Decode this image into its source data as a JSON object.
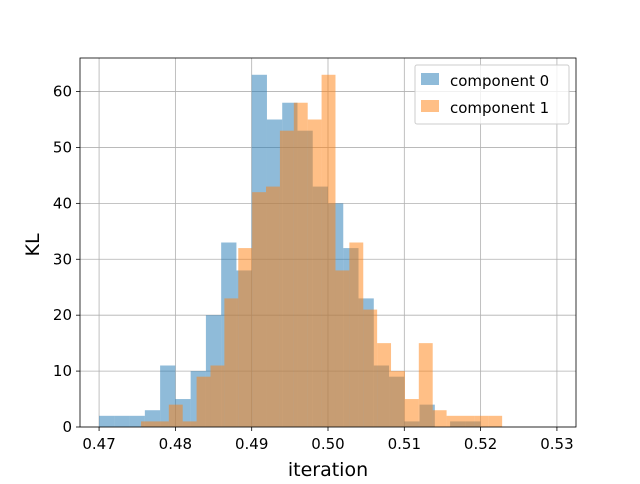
{
  "chart_data": {
    "type": "bar",
    "subtype": "histogram-overlay",
    "xlabel": "iteration",
    "ylabel": "KL",
    "xlim": [
      0.4675,
      0.5325
    ],
    "ylim": [
      0,
      66
    ],
    "xticks": [
      "0.47",
      "0.48",
      "0.49",
      "0.50",
      "0.51",
      "0.52",
      "0.53"
    ],
    "xtick_values": [
      0.47,
      0.48,
      0.49,
      0.5,
      0.51,
      0.52,
      0.53
    ],
    "yticks": [
      "0",
      "10",
      "20",
      "30",
      "40",
      "50",
      "60"
    ],
    "ytick_values": [
      0,
      10,
      20,
      30,
      40,
      50,
      60
    ],
    "grid": true,
    "legend_position": "top-right",
    "series": [
      {
        "name": "component 0",
        "color": "#1f77b4",
        "alpha": 0.5,
        "bin_start": 0.47,
        "bin_width": 0.002,
        "counts": [
          2,
          2,
          2,
          3,
          11,
          5,
          10,
          20,
          33,
          28,
          63,
          55,
          58,
          53,
          43,
          40,
          32,
          23,
          11,
          9,
          1,
          4,
          0,
          1,
          1,
          0,
          0,
          0,
          0,
          0
        ]
      },
      {
        "name": "component 1",
        "color": "#ff7f0e",
        "alpha": 0.5,
        "bin_start": 0.4755,
        "bin_width": 0.00182,
        "counts": [
          1,
          1,
          4,
          1,
          9,
          11,
          23,
          32,
          42,
          43,
          53,
          58,
          55,
          63,
          28,
          33,
          21,
          15,
          10,
          5,
          15,
          3,
          2,
          2,
          2,
          2,
          0,
          0,
          0,
          0
        ]
      }
    ]
  }
}
